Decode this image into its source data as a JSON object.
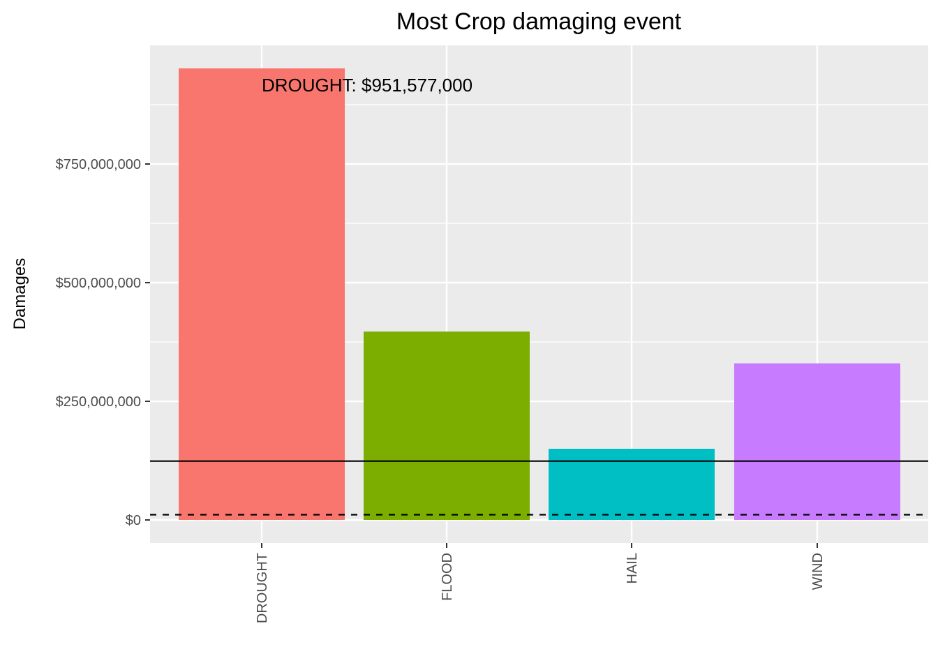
{
  "chart_data": {
    "type": "bar",
    "title": "Most Crop damaging event",
    "xlabel": "",
    "ylabel": "Damages",
    "categories": [
      "DROUGHT",
      "FLOOD",
      "HAIL",
      "WIND"
    ],
    "values": [
      951577000,
      397000000,
      150000000,
      330000000
    ],
    "colors": [
      "#F8766D",
      "#7CAE00",
      "#00BFC4",
      "#C77CFF"
    ],
    "ylim": [
      -48000000,
      1000000000
    ],
    "yticks": [
      0,
      250000000,
      500000000,
      750000000
    ],
    "ytick_labels": [
      "$0",
      "$250,000,000",
      "$500,000,000",
      "$750,000,000"
    ],
    "hlines": [
      {
        "value": 124000000,
        "style": "solid"
      },
      {
        "value": 11000000,
        "style": "dashed"
      }
    ],
    "annotation": {
      "text": "DROUGHT: $951,577,000",
      "category": "DROUGHT",
      "value": 900000000
    },
    "grid": true,
    "legend": "none",
    "panel_background": "#EBEBEB"
  }
}
